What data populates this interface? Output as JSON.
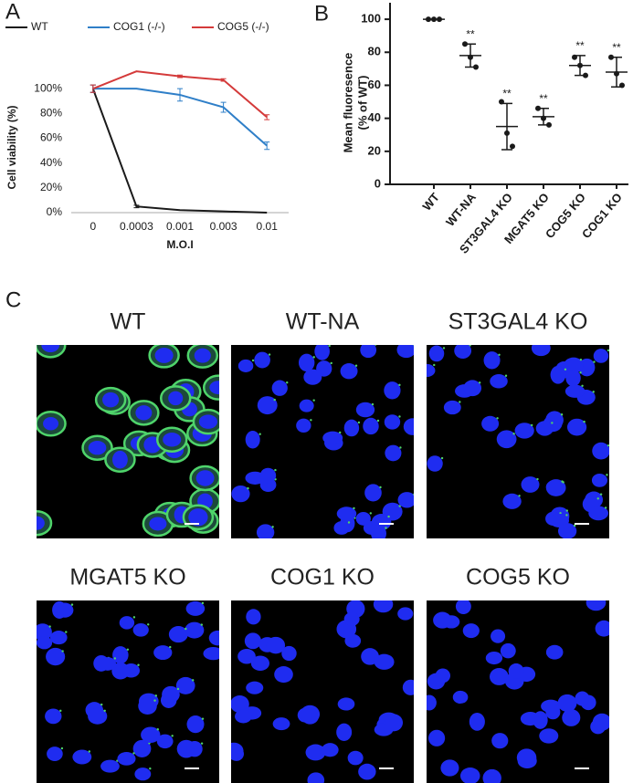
{
  "panel_labels": [
    "A",
    "B",
    "C"
  ],
  "chart_data": [
    {
      "type": "line",
      "categories": [
        "0",
        "0.0003",
        "0.001",
        "0.003",
        "0.01"
      ],
      "xlabel": "M.O.I",
      "ylabel": "Cell viability (%)",
      "ylim": [
        0,
        120
      ],
      "yticks": [
        {
          "value": 0,
          "label": "0%"
        },
        {
          "value": 20,
          "label": "20%"
        },
        {
          "value": 40,
          "label": "40%"
        },
        {
          "value": 60,
          "label": "60%"
        },
        {
          "value": 80,
          "label": "80%"
        },
        {
          "value": 100,
          "label": "100%"
        }
      ],
      "series": [
        {
          "name": "WT",
          "color": "#1a1a1a",
          "values": [
            100,
            5,
            2,
            1,
            0
          ],
          "errors": [
            3,
            1,
            0,
            0,
            0
          ]
        },
        {
          "name": "COG1 (-/-)",
          "color": "#2f7fc8",
          "values": [
            100,
            100,
            95,
            85,
            54
          ],
          "errors": [
            3,
            0,
            5,
            4,
            3
          ]
        },
        {
          "name": "COG5 (-/-)",
          "color": "#d43a3a",
          "values": [
            100,
            114,
            110,
            107,
            77
          ],
          "errors": [
            3,
            0,
            1,
            1,
            2
          ]
        }
      ]
    },
    {
      "type": "dot",
      "categories": [
        "WT",
        "WT-NA",
        "ST3GAL4 KO",
        "MGAT5 KO",
        "COG5 KO",
        "COG1 KO"
      ],
      "ylabel": [
        "Mean fluoresence",
        "(% of WT)"
      ],
      "ylim": [
        0,
        110
      ],
      "yticks": [
        0,
        20,
        40,
        60,
        80,
        100
      ],
      "points": [
        [
          100,
          100,
          100
        ],
        [
          85,
          77,
          71
        ],
        [
          50,
          31,
          23
        ],
        [
          46,
          40,
          36
        ],
        [
          77,
          72,
          66
        ],
        [
          77,
          67,
          60
        ]
      ],
      "means": [
        100,
        78,
        35,
        41,
        72,
        68
      ],
      "sd": [
        0,
        7,
        14,
        5,
        6,
        9
      ],
      "significance": [
        null,
        "**",
        "**",
        "**",
        "**",
        "**"
      ],
      "color": "#1a1a1a"
    }
  ],
  "micrographs": [
    {
      "title": "WT"
    },
    {
      "title": "WT-NA"
    },
    {
      "title": "ST3GAL4 KO"
    },
    {
      "title": "MGAT5 KO"
    },
    {
      "title": "COG1 KO"
    },
    {
      "title": "COG5 KO"
    }
  ]
}
